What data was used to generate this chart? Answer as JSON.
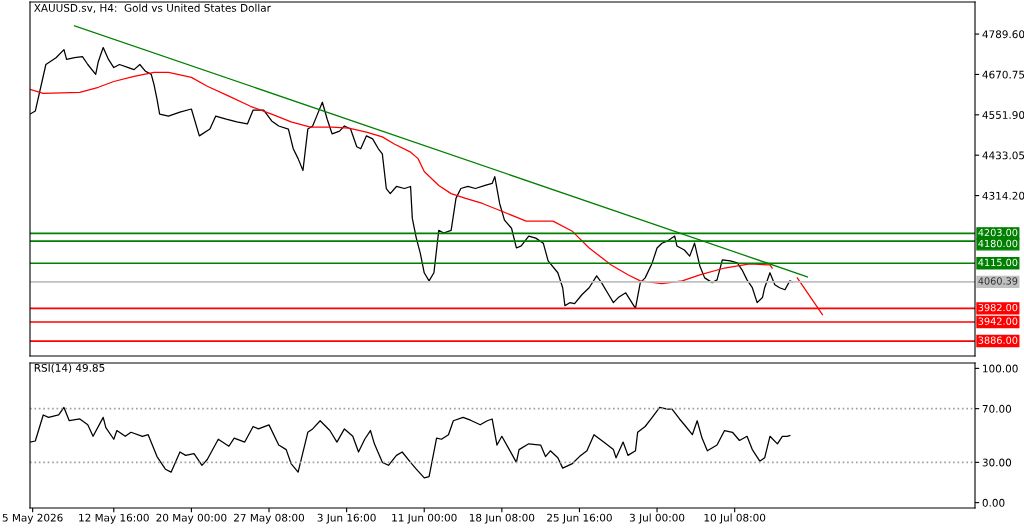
{
  "chart_data": [
    {
      "type": "line",
      "title": "XAUUSD.sv, H4:  Gold vs United States Dollar",
      "xlim": [
        "2026-05-04T18:00",
        "2026-08-02T01:00"
      ],
      "ylim": [
        3842,
        4884
      ],
      "yticks": [
        {
          "value": 4789.6,
          "label": "4789.60"
        },
        {
          "value": 4670.75,
          "label": "4670.75"
        },
        {
          "value": 4551.9,
          "label": "4551.90"
        },
        {
          "value": 4433.05,
          "label": "4433.05"
        },
        {
          "value": 4314.2,
          "label": "4314.20"
        }
      ],
      "tick_labels": "y",
      "grid": false,
      "legend": false,
      "marker": "none",
      "series": [
        {
          "color": "#000000",
          "x": [
            "2026-05-04T18:00",
            "2026-05-05T06:00",
            "2026-05-06T06:00",
            "2026-05-07T05:00",
            "2026-05-07T23:00",
            "2026-05-08T05:00",
            "2026-05-08T23:00",
            "2026-05-09T17:00",
            "2026-05-10T05:00",
            "2026-05-10T23:00",
            "2026-05-11T05:00",
            "2026-05-11T16:00",
            "2026-05-12T04:00",
            "2026-05-12T16:00",
            "2026-05-13T05:00",
            "2026-05-14T01:00",
            "2026-05-14T14:00",
            "2026-05-15T03:00",
            "2026-05-15T16:00",
            "2026-05-16T05:00",
            "2026-05-16T11:00",
            "2026-05-16T18:00",
            "2026-05-17T00:00",
            "2026-05-17T20:00",
            "2026-05-18T22:00",
            "2026-05-20T00:00",
            "2026-05-20T18:00",
            "2026-05-21T18:00",
            "2026-05-22T07:00",
            "2026-05-23T07:00",
            "2026-05-24T07:00",
            "2026-05-25T07:00",
            "2026-05-25T20:00",
            "2026-05-26T20:00",
            "2026-05-27T14:00",
            "2026-05-28T06:00",
            "2026-05-29T04:00",
            "2026-05-29T15:00",
            "2026-05-30T02:00",
            "2026-05-30T13:00",
            "2026-05-31T00:00",
            "2026-05-31T11:00",
            "2026-05-31T22:00",
            "2026-06-01T09:00",
            "2026-06-01T20:00",
            "2026-06-02T07:00",
            "2026-06-03T00:00",
            "2026-06-03T11:00",
            "2026-06-04T01:00",
            "2026-06-04T15:00",
            "2026-06-05T00:00",
            "2026-06-05T13:00",
            "2026-06-06T03:00",
            "2026-06-06T16:00",
            "2026-06-07T01:00",
            "2026-06-07T10:00",
            "2026-06-07T19:00",
            "2026-06-08T09:00",
            "2026-06-09T03:00",
            "2026-06-09T17:00",
            "2026-06-09T21:00",
            "2026-06-10T06:00",
            "2026-06-10T15:00",
            "2026-06-11T00:00",
            "2026-06-11T11:00",
            "2026-06-11T22:00",
            "2026-06-12T09:00",
            "2026-06-12T20:00",
            "2026-06-13T13:00",
            "2026-06-14T00:00",
            "2026-06-14T11:00",
            "2026-06-15T03:00",
            "2026-06-15T20:00",
            "2026-06-16T18:00",
            "2026-06-17T10:00",
            "2026-06-17T16:00",
            "2026-06-18T03:00",
            "2026-06-18T14:00",
            "2026-06-19T06:00",
            "2026-06-19T17:00",
            "2026-06-20T04:00",
            "2026-06-20T21:00",
            "2026-06-21T13:00",
            "2026-06-22T06:00",
            "2026-06-22T17:00",
            "2026-06-23T15:00",
            "2026-06-24T02:00",
            "2026-06-24T07:00",
            "2026-06-24T18:00",
            "2026-06-25T05:00",
            "2026-06-25T22:00",
            "2026-06-26T14:00",
            "2026-06-27T07:00",
            "2026-06-27T18:00",
            "2026-06-28T10:00",
            "2026-06-28T21:00",
            "2026-06-29T08:00",
            "2026-06-30T01:00",
            "2026-06-30T12:00",
            "2026-06-30T23:00",
            "2026-07-01T10:00",
            "2026-07-01T21:00",
            "2026-07-02T13:00",
            "2026-07-03T00:00",
            "2026-07-03T11:00",
            "2026-07-03T23:00",
            "2026-07-04T16:00",
            "2026-07-04T21:00",
            "2026-07-05T14:00",
            "2026-07-06T02:00",
            "2026-07-06T13:00",
            "2026-07-07T01:00",
            "2026-07-07T12:00",
            "2026-07-08T05:00",
            "2026-07-08T16:00",
            "2026-07-09T04:00",
            "2026-07-09T22:00",
            "2026-07-10T14:00",
            "2026-07-11T01:00",
            "2026-07-11T12:00",
            "2026-07-12T00:00",
            "2026-07-12T11:00",
            "2026-07-12T23:00",
            "2026-07-13T04:00",
            "2026-07-13T16:00",
            "2026-07-14T03:00",
            "2026-07-14T14:00",
            "2026-07-15T02:00",
            "2026-07-15T13:00",
            "2026-07-15T19:00"
          ],
          "values": [
            4554,
            4563,
            4700,
            4720,
            4744,
            4715,
            4720,
            4723,
            4700,
            4671,
            4709,
            4750,
            4715,
            4691,
            4700,
            4691,
            4685,
            4700,
            4680,
            4671,
            4642,
            4598,
            4554,
            4548,
            4560,
            4569,
            4490,
            4510,
            4548,
            4539,
            4531,
            4525,
            4566,
            4566,
            4534,
            4519,
            4510,
            4452,
            4423,
            4388,
            4510,
            4519,
            4554,
            4589,
            4539,
            4496,
            4504,
            4519,
            4510,
            4458,
            4452,
            4490,
            4481,
            4452,
            4437,
            4335,
            4320,
            4341,
            4335,
            4341,
            4247,
            4189,
            4145,
            4087,
            4063,
            4087,
            4212,
            4204,
            4212,
            4306,
            4335,
            4341,
            4335,
            4344,
            4350,
            4370,
            4291,
            4242,
            4218,
            4160,
            4166,
            4195,
            4189,
            4174,
            4122,
            4087,
            4043,
            3990,
            3999,
            3996,
            4023,
            4043,
            4078,
            4058,
            4023,
            3999,
            4014,
            4028,
            4005,
            3982,
            4058,
            4072,
            4116,
            4160,
            4174,
            4180,
            4195,
            4166,
            4154,
            4136,
            4174,
            4107,
            4072,
            4058,
            4066,
            4125,
            4122,
            4116,
            4095,
            4066,
            4043,
            3999,
            4014,
            4043,
            4087,
            4052,
            4043,
            4037,
            4063,
            4060
          ]
        },
        {
          "color": "#ff0000",
          "x": [
            "2026-05-04T18:00",
            "2026-05-06T00:00",
            "2026-05-09T11:00",
            "2026-05-11T05:00",
            "2026-05-12T16:00",
            "2026-05-14T14:00",
            "2026-05-16T11:00",
            "2026-05-17T20:00",
            "2026-05-20T00:00",
            "2026-05-21T12:00",
            "2026-05-23T13:00",
            "2026-05-25T14:00",
            "2026-05-27T14:00",
            "2026-05-29T10:00",
            "2026-05-31T06:00",
            "2026-06-02T07:00",
            "2026-06-03T21:00",
            "2026-06-05T13:00",
            "2026-06-07T01:00",
            "2026-06-08T04:00",
            "2026-06-09T16:00",
            "2026-06-10T10:00",
            "2026-06-11T00:00",
            "2026-06-12T09:00",
            "2026-06-13T13:00",
            "2026-06-14T22:00",
            "2026-06-16T12:00",
            "2026-06-18T08:00",
            "2026-06-20T15:00",
            "2026-06-23T04:00",
            "2026-06-25T00:00",
            "2026-06-26T14:00",
            "2026-06-28T16:00",
            "2026-06-30T06:00",
            "2026-07-01T10:00",
            "2026-07-03T11:00",
            "2026-07-05T09:00",
            "2026-07-07T01:00",
            "2026-07-09T09:00",
            "2026-07-11T18:00",
            "2026-07-13T16:00",
            "2026-07-13T21:00"
          ],
          "values": [
            4627,
            4615,
            4618,
            4633,
            4650,
            4665,
            4677,
            4677,
            4662,
            4636,
            4607,
            4577,
            4554,
            4531,
            4516,
            4516,
            4513,
            4501,
            4487,
            4466,
            4443,
            4423,
            4385,
            4344,
            4320,
            4306,
            4291,
            4268,
            4239,
            4239,
            4209,
            4160,
            4110,
            4081,
            4063,
            4055,
            4063,
            4081,
            4101,
            4113,
            4110,
            4101
          ]
        },
        {
          "color": "#008000",
          "x": [
            "2026-05-08T23:00",
            "2026-07-17T05:00"
          ],
          "values": [
            4814,
            4075
          ]
        },
        {
          "color": "#ff0000",
          "x": [
            "2026-07-16T06:00",
            "2026-07-18T15:00"
          ],
          "values": [
            4072,
            3964
          ]
        }
      ],
      "ref_lines": [
        {
          "axis": "y",
          "value": 4203,
          "label": "4203.00",
          "color": "#008000"
        },
        {
          "axis": "y",
          "value": 4180,
          "label": "4180.00",
          "color": "#008000"
        },
        {
          "axis": "y",
          "value": 4115,
          "label": "4115.00",
          "color": "#008000"
        },
        {
          "axis": "y",
          "value": 4060.39,
          "label": "4060.39",
          "color": "#c0c0c0"
        },
        {
          "axis": "y",
          "value": 3982,
          "label": "3982.00",
          "color": "#ff0000"
        },
        {
          "axis": "y",
          "value": 3942,
          "label": "3942.00",
          "color": "#ff0000"
        },
        {
          "axis": "y",
          "value": 3886,
          "label": "3886.00",
          "color": "#ff0000"
        }
      ]
    },
    {
      "type": "line",
      "title": "RSI(14) 49.85",
      "xlim": [
        "2026-05-04T18:00",
        "2026-08-02T01:00"
      ],
      "ylim": [
        -4,
        104
      ],
      "xticks": [
        {
          "value": "2026-05-05T00:00",
          "label": "5 May 2026"
        },
        {
          "value": "2026-05-12T16:00",
          "label": "12 May 16:00"
        },
        {
          "value": "2026-05-20T00:00",
          "label": "20 May 00:00"
        },
        {
          "value": "2026-05-27T08:00",
          "label": "27 May 08:00"
        },
        {
          "value": "2026-06-03T16:00",
          "label": "3 Jun 16:00"
        },
        {
          "value": "2026-06-11T00:00",
          "label": "11 Jun 00:00"
        },
        {
          "value": "2026-06-18T08:00",
          "label": "18 Jun 08:00"
        },
        {
          "value": "2026-06-25T16:00",
          "label": "25 Jun 16:00"
        },
        {
          "value": "2026-07-03T00:00",
          "label": "3 Jul 00:00"
        },
        {
          "value": "2026-07-10T08:00",
          "label": "10 Jul 08:00"
        }
      ],
      "yticks": [
        {
          "value": 0,
          "label": "0.00"
        },
        {
          "value": 30,
          "label": "30.00"
        },
        {
          "value": 70,
          "label": "70.00"
        },
        {
          "value": 100,
          "label": "100.00"
        }
      ],
      "grid": false,
      "legend": false,
      "marker": "none",
      "series": [
        {
          "color": "#000000",
          "x": [
            "2026-05-04T18:00",
            "2026-05-05T06:00",
            "2026-05-06T00:00",
            "2026-05-06T12:00",
            "2026-05-07T11:00",
            "2026-05-07T23:00",
            "2026-05-08T11:00",
            "2026-05-09T11:00",
            "2026-05-10T05:00",
            "2026-05-10T17:00",
            "2026-05-11T16:00",
            "2026-05-11T22:00",
            "2026-05-12T16:00",
            "2026-05-12T23:00",
            "2026-05-13T18:00",
            "2026-05-14T07:00",
            "2026-05-15T09:00",
            "2026-05-15T22:00",
            "2026-05-16T18:00",
            "2026-05-17T13:00",
            "2026-05-18T02:00",
            "2026-05-18T22:00",
            "2026-05-19T11:00",
            "2026-05-20T06:00",
            "2026-05-21T00:00",
            "2026-05-21T12:00",
            "2026-05-22T13:00",
            "2026-05-23T13:00",
            "2026-05-24T01:00",
            "2026-05-25T01:00",
            "2026-05-25T20:00",
            "2026-05-26T08:00",
            "2026-05-27T08:00",
            "2026-05-28T06:00",
            "2026-05-28T23:00",
            "2026-05-29T10:00",
            "2026-05-30T02:00",
            "2026-05-31T00:00",
            "2026-05-31T11:00",
            "2026-06-01T04:00",
            "2026-06-02T02:00",
            "2026-06-02T18:00",
            "2026-06-03T11:00",
            "2026-06-04T06:00",
            "2026-06-04T19:00",
            "2026-06-05T09:00",
            "2026-06-05T22:00",
            "2026-06-06T07:00",
            "2026-06-07T01:00",
            "2026-06-07T15:00",
            "2026-06-08T09:00",
            "2026-06-08T22:00",
            "2026-06-09T17:00",
            "2026-06-10T06:00",
            "2026-06-11T00:00",
            "2026-06-11T11:00",
            "2026-06-12T04:00",
            "2026-06-12T15:00",
            "2026-06-13T07:00",
            "2026-06-13T18:00",
            "2026-06-14T16:00",
            "2026-06-15T09:00",
            "2026-06-16T07:00",
            "2026-06-16T23:00",
            "2026-06-17T10:00",
            "2026-06-17T21:00",
            "2026-06-18T08:00",
            "2026-06-19T06:00",
            "2026-06-19T17:00",
            "2026-06-19T23:00",
            "2026-06-20T21:00",
            "2026-06-22T00:00",
            "2026-06-22T11:00",
            "2026-06-22T22:00",
            "2026-06-23T15:00",
            "2026-06-24T02:00",
            "2026-06-25T00:00",
            "2026-06-25T16:00",
            "2026-06-26T09:00",
            "2026-06-27T01:00",
            "2026-06-27T23:00",
            "2026-06-28T21:00",
            "2026-06-29T03:00",
            "2026-06-29T19:00",
            "2026-06-30T06:00",
            "2026-06-30T23:00",
            "2026-07-01T04:00",
            "2026-07-01T21:00",
            "2026-07-02T13:00",
            "2026-07-03T06:00",
            "2026-07-03T23:00",
            "2026-07-04T10:00",
            "2026-07-05T03:00",
            "2026-07-05T14:00",
            "2026-07-06T08:00",
            "2026-07-06T19:00",
            "2026-07-07T06:00",
            "2026-07-07T18:00",
            "2026-07-08T16:00",
            "2026-07-09T09:00",
            "2026-07-10T03:00",
            "2026-07-10T19:00",
            "2026-07-11T12:00",
            "2026-07-12T00:00",
            "2026-07-12T17:00",
            "2026-07-13T04:00",
            "2026-07-13T16:00",
            "2026-07-14T09:00",
            "2026-07-14T20:00",
            "2026-07-15T07:00",
            "2026-07-15T13:00"
          ],
          "values": [
            45.1,
            45.9,
            65.3,
            63.5,
            65.3,
            70.9,
            61.0,
            62.3,
            58.0,
            49.4,
            63.5,
            55.8,
            47.2,
            53.7,
            49.4,
            52.4,
            49.4,
            50.6,
            34.3,
            24.9,
            22.7,
            37.7,
            35.2,
            36.5,
            27.8,
            32.1,
            47.2,
            42.0,
            48.1,
            45.1,
            56.7,
            54.9,
            57.9,
            42.9,
            39.5,
            29.1,
            22.7,
            52.4,
            54.9,
            61.0,
            53.7,
            45.1,
            54.9,
            49.4,
            37.7,
            47.2,
            53.7,
            43.8,
            30.0,
            27.8,
            35.2,
            37.7,
            30.0,
            24.9,
            18.4,
            19.3,
            48.1,
            47.2,
            50.6,
            61.0,
            63.5,
            61.4,
            58.0,
            61.0,
            62.3,
            42.9,
            49.4,
            36.5,
            30.0,
            39.5,
            43.8,
            42.9,
            34.3,
            38.6,
            33.4,
            25.7,
            29.1,
            34.3,
            38.6,
            50.6,
            45.1,
            39.5,
            33.4,
            45.1,
            35.2,
            38.6,
            52.4,
            56.7,
            63.5,
            70.9,
            69.6,
            69.6,
            62.3,
            58.0,
            50.6,
            61.0,
            48.1,
            38.6,
            42.9,
            53.7,
            52.4,
            46.3,
            49.4,
            39.5,
            30.9,
            33.4,
            49.4,
            43.8,
            49.4,
            49.4,
            49.9
          ]
        }
      ],
      "ref_lines": [
        {
          "axis": "y",
          "value": 70,
          "color": "#a0a0a0",
          "line_style": "dotted"
        },
        {
          "axis": "y",
          "value": 30,
          "color": "#a0a0a0",
          "line_style": "dotted"
        }
      ]
    }
  ]
}
